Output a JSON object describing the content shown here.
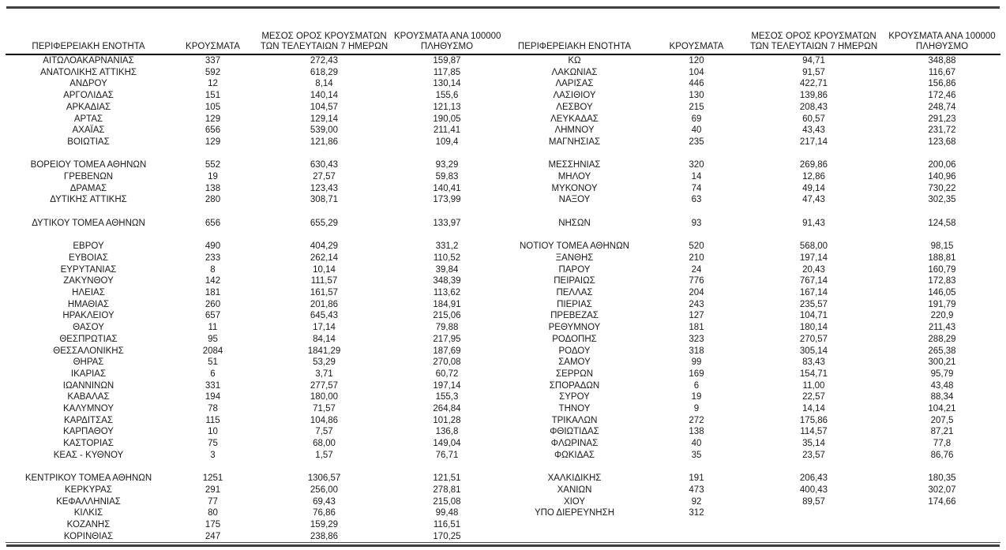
{
  "document": {
    "kind": "regional-cases-report-table",
    "language": "el",
    "text_color": "#1a1a1a",
    "rules": {
      "top_rule_color": "#3f3f3f",
      "header_underline_color": "#000000",
      "bottom_thin_line_color": "#4a4a4a",
      "bottom_rule_color": "#3f3f3f"
    }
  },
  "table": {
    "headers": {
      "region": "ΠΕΡΙΦΕΡΕΙΑΚΗ ΕΝΟΤΗΤΑ",
      "cases": "ΚΡΟΥΣΜΑΤΑ",
      "avg7_line1": "ΜΕΣΟΣ ΟΡΟΣ ΚΡΟΥΣΜΑΤΩΝ",
      "avg7_line2": "ΤΩΝ ΤΕΛΕΥΤΑΙΩΝ 7 ΗΜΕΡΩΝ",
      "per100k_line1": "ΚΡΟΥΣΜΑΤΑ ΑΝΑ 100000",
      "per100k_line2": "ΠΛΗΘΥΣΜΟ"
    },
    "rows": [
      [
        "ΑΙΤΩΛΟΑΚΑΡΝΑΝΙΑΣ",
        "337",
        "272,43",
        "159,87",
        "ΚΩ",
        "120",
        "94,71",
        "348,88"
      ],
      [
        "ΑΝΑΤΟΛΙΚΗΣ ΑΤΤΙΚΗΣ",
        "592",
        "618,29",
        "117,85",
        "ΛΑΚΩΝΙΑΣ",
        "104",
        "91,57",
        "116,67"
      ],
      [
        "ΑΝΔΡΟΥ",
        "12",
        "8,14",
        "130,14",
        "ΛΑΡΙΣΑΣ",
        "446",
        "422,71",
        "156,86"
      ],
      [
        "ΑΡΓΟΛΙΔΑΣ",
        "151",
        "140,14",
        "155,6",
        "ΛΑΣΙΘΙΟΥ",
        "130",
        "139,86",
        "172,46"
      ],
      [
        "ΑΡΚΑΔΙΑΣ",
        "105",
        "104,57",
        "121,13",
        "ΛΕΣΒΟΥ",
        "215",
        "208,43",
        "248,74"
      ],
      [
        "ΑΡΤΑΣ",
        "129",
        "129,14",
        "190,05",
        "ΛΕΥΚΑΔΑΣ",
        "69",
        "60,57",
        "291,23"
      ],
      [
        "ΑΧΑΪΑΣ",
        "656",
        "539,00",
        "211,41",
        "ΛΗΜΝΟΥ",
        "40",
        "43,43",
        "231,72"
      ],
      [
        "ΒΟΙΩΤΙΑΣ",
        "129",
        "121,86",
        "109,4",
        "ΜΑΓΝΗΣΙΑΣ",
        "235",
        "217,14",
        "123,68"
      ],
      null,
      [
        "ΒΟΡΕΙΟΥ ΤΟΜΕΑ ΑΘΗΝΩΝ",
        "552",
        "630,43",
        "93,29",
        "ΜΕΣΣΗΝΙΑΣ",
        "320",
        "269,86",
        "200,06"
      ],
      [
        "ΓΡΕΒΕΝΩΝ",
        "19",
        "27,57",
        "59,83",
        "ΜΗΛΟΥ",
        "14",
        "12,86",
        "140,96"
      ],
      [
        "ΔΡΑΜΑΣ",
        "138",
        "123,43",
        "140,41",
        "ΜΥΚΟΝΟΥ",
        "74",
        "49,14",
        "730,22"
      ],
      [
        "ΔΥΤΙΚΗΣ ΑΤΤΙΚΗΣ",
        "280",
        "308,71",
        "173,99",
        "ΝΑΞΟΥ",
        "63",
        "47,43",
        "302,35"
      ],
      null,
      [
        "ΔΥΤΙΚΟΥ ΤΟΜΕΑ ΑΘΗΝΩΝ",
        "656",
        "655,29",
        "133,97",
        "ΝΗΣΩΝ",
        "93",
        "91,43",
        "124,58"
      ],
      null,
      [
        "ΕΒΡΟΥ",
        "490",
        "404,29",
        "331,2",
        "ΝΟΤΙΟΥ ΤΟΜΕΑ ΑΘΗΝΩΝ",
        "520",
        "568,00",
        "98,15"
      ],
      [
        "ΕΥΒΟΙΑΣ",
        "233",
        "262,14",
        "110,52",
        "ΞΑΝΘΗΣ",
        "210",
        "197,14",
        "188,81"
      ],
      [
        "ΕΥΡΥΤΑΝΙΑΣ",
        "8",
        "10,14",
        "39,84",
        "ΠΑΡΟΥ",
        "24",
        "20,43",
        "160,79"
      ],
      [
        "ΖΑΚΥΝΘΟΥ",
        "142",
        "111,57",
        "348,39",
        "ΠΕΙΡΑΙΩΣ",
        "776",
        "767,14",
        "172,83"
      ],
      [
        "ΗΛΕΙΑΣ",
        "181",
        "161,57",
        "113,62",
        "ΠΕΛΛΑΣ",
        "204",
        "167,14",
        "146,05"
      ],
      [
        "ΗΜΑΘΙΑΣ",
        "260",
        "201,86",
        "184,91",
        "ΠΙΕΡΙΑΣ",
        "243",
        "235,57",
        "191,79"
      ],
      [
        "ΗΡΑΚΛΕΙΟΥ",
        "657",
        "645,43",
        "215,06",
        "ΠΡΕΒΕΖΑΣ",
        "127",
        "104,71",
        "220,9"
      ],
      [
        "ΘΑΣΟΥ",
        "11",
        "17,14",
        "79,88",
        "ΡΕΘΥΜΝΟΥ",
        "181",
        "180,14",
        "211,43"
      ],
      [
        "ΘΕΣΠΡΩΤΙΑΣ",
        "95",
        "84,14",
        "217,95",
        "ΡΟΔΟΠΗΣ",
        "323",
        "270,57",
        "288,29"
      ],
      [
        "ΘΕΣΣΑΛΟΝΙΚΗΣ",
        "2084",
        "1841,29",
        "187,69",
        "ΡΟΔΟΥ",
        "318",
        "305,14",
        "265,38"
      ],
      [
        "ΘΗΡΑΣ",
        "51",
        "53,29",
        "270,08",
        "ΣΑΜΟΥ",
        "99",
        "83,43",
        "300,21"
      ],
      [
        "ΙΚΑΡΙΑΣ",
        "6",
        "3,71",
        "60,72",
        "ΣΕΡΡΩΝ",
        "169",
        "154,71",
        "95,79"
      ],
      [
        "ΙΩΑΝΝΙΝΩΝ",
        "331",
        "277,57",
        "197,14",
        "ΣΠΟΡΑΔΩΝ",
        "6",
        "11,00",
        "43,48"
      ],
      [
        "ΚΑΒΑΛΑΣ",
        "194",
        "180,00",
        "155,3",
        "ΣΥΡΟΥ",
        "19",
        "22,57",
        "88,34"
      ],
      [
        "ΚΑΛΥΜΝΟΥ",
        "78",
        "71,57",
        "264,84",
        "ΤΗΝΟΥ",
        "9",
        "14,14",
        "104,21"
      ],
      [
        "ΚΑΡΔΙΤΣΑΣ",
        "115",
        "104,86",
        "101,28",
        "ΤΡΙΚΑΛΩΝ",
        "272",
        "175,86",
        "207,5"
      ],
      [
        "ΚΑΡΠΑΘΟΥ",
        "10",
        "7,57",
        "136,8",
        "ΦΘΙΩΤΙΔΑΣ",
        "138",
        "114,57",
        "87,21"
      ],
      [
        "ΚΑΣΤΟΡΙΑΣ",
        "75",
        "68,00",
        "149,04",
        "ΦΛΩΡΙΝΑΣ",
        "40",
        "35,14",
        "77,8"
      ],
      [
        "ΚΕΑΣ - ΚΥΘΝΟΥ",
        "3",
        "1,57",
        "76,71",
        "ΦΩΚΙΔΑΣ",
        "35",
        "23,57",
        "86,76"
      ],
      null,
      [
        "ΚΕΝΤΡΙΚΟΥ ΤΟΜΕΑ ΑΘΗΝΩΝ",
        "1251",
        "1306,57",
        "121,51",
        "ΧΑΛΚΙΔΙΚΗΣ",
        "191",
        "206,43",
        "180,35"
      ],
      [
        "ΚΕΡΚΥΡΑΣ",
        "291",
        "256,00",
        "278,81",
        "ΧΑΝΙΩΝ",
        "473",
        "400,43",
        "302,07"
      ],
      [
        "ΚΕΦΑΛΛΗΝΙΑΣ",
        "77",
        "69,43",
        "215,08",
        "ΧΙΟΥ",
        "92",
        "89,57",
        "174,66"
      ],
      [
        "ΚΙΛΚΙΣ",
        "80",
        "76,86",
        "99,48",
        "ΥΠΟ ΔΙΕΡΕΥΝΗΣΗ",
        "312",
        "",
        ""
      ],
      [
        "ΚΟΖΑΝΗΣ",
        "175",
        "159,29",
        "116,51",
        "",
        "",
        "",
        ""
      ],
      [
        "ΚΟΡΙΝΘΙΑΣ",
        "247",
        "238,86",
        "170,25",
        "",
        "",
        "",
        ""
      ]
    ]
  }
}
